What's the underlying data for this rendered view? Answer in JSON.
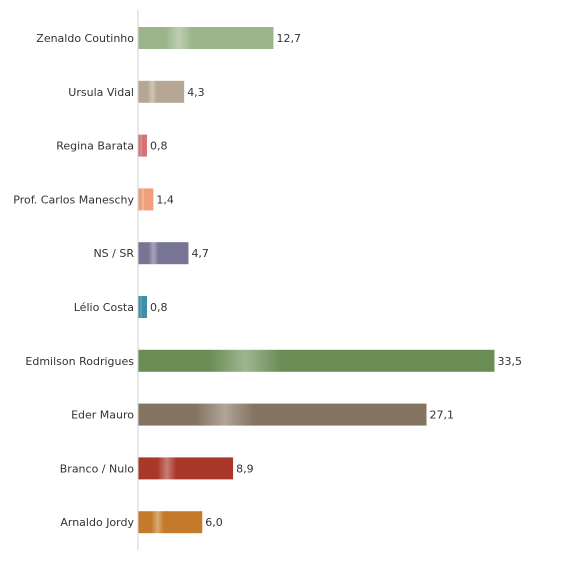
{
  "chart_data": {
    "type": "bar",
    "orientation": "horizontal",
    "categories": [
      "Zenaldo Coutinho",
      "Ursula Vidal",
      "Regina Barata",
      "Prof. Carlos Maneschy",
      "NS / SR",
      "Lélio Costa",
      "Edmilson Rodrigues",
      "Eder Mauro",
      "Branco / Nulo",
      "Arnaldo Jordy"
    ],
    "values": [
      12.7,
      4.3,
      0.8,
      1.4,
      4.7,
      0.8,
      33.5,
      27.1,
      8.9,
      6.0
    ],
    "value_labels": [
      "12,7",
      "4,3",
      "0,8",
      "1,4",
      "4,7",
      "0,8",
      "33,5",
      "27,1",
      "8,9",
      "6,0"
    ],
    "colors": [
      "#9BB48A",
      "#B5A793",
      "#D47476",
      "#EFA07A",
      "#777593",
      "#3E8FA6",
      "#6A8D56",
      "#857462",
      "#A9372A",
      "#C47A2A"
    ],
    "xlim": [
      0,
      33.5
    ],
    "grid": false,
    "legend": "none",
    "axis_color": "#D0D0D0"
  }
}
